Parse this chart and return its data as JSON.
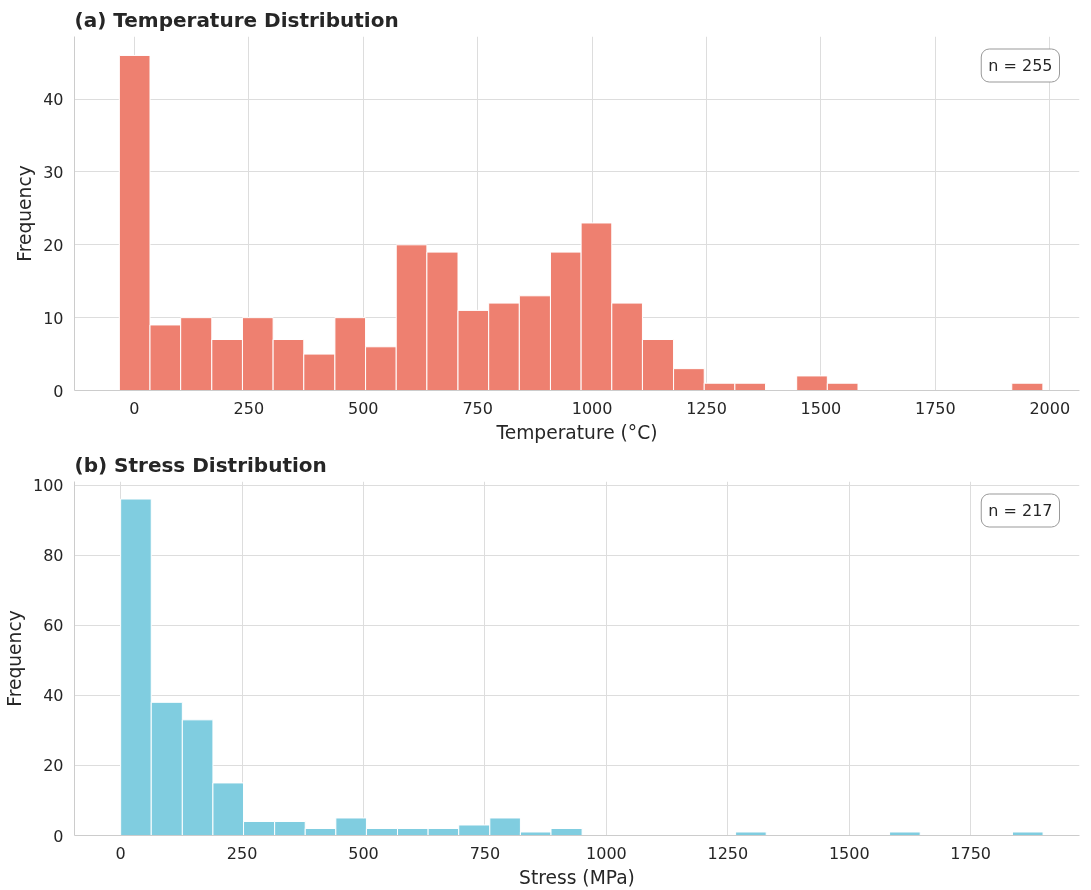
{
  "chart_data": [
    {
      "type": "histogram",
      "title": "(a) Temperature Distribution",
      "xlabel": "Temperature (°C)",
      "ylabel": "Frequency",
      "color": "#ee8070",
      "bins": [
        -33,
        34,
        101,
        169,
        236,
        303,
        370,
        438,
        505,
        572,
        639,
        707,
        774,
        841,
        909,
        976,
        1043,
        1110,
        1178,
        1245,
        1312,
        1379,
        1447,
        1514,
        1581,
        1648,
        1716,
        1783,
        1850,
        1917,
        1985
      ],
      "values": [
        46,
        9,
        10,
        7,
        10,
        7,
        5,
        10,
        6,
        20,
        19,
        11,
        12,
        13,
        19,
        23,
        12,
        7,
        3,
        1,
        1,
        0,
        2,
        1,
        0,
        0,
        0,
        0,
        0,
        1
      ],
      "xlim": [
        -131,
        2065
      ],
      "ylim": [
        0,
        48.6
      ],
      "xticks": [
        0,
        250,
        500,
        750,
        1000,
        1250,
        1500,
        1750,
        2000
      ],
      "yticks": [
        0,
        10,
        20,
        30,
        40
      ],
      "grid": true,
      "annotations": [
        "n = 255"
      ]
    },
    {
      "type": "histogram",
      "title": "(b) Stress Distribution",
      "xlabel": "Stress (MPa)",
      "ylabel": "Frequency",
      "color": "#80cde0",
      "bins": [
        0,
        63,
        127,
        190,
        253,
        317,
        380,
        443,
        506,
        570,
        633,
        696,
        760,
        823,
        886,
        950,
        1013,
        1076,
        1139,
        1203,
        1266,
        1329,
        1393,
        1456,
        1519,
        1583,
        1646,
        1709,
        1772,
        1836,
        1899
      ],
      "values": [
        96,
        38,
        33,
        15,
        4,
        4,
        2,
        5,
        2,
        2,
        2,
        3,
        5,
        1,
        2,
        0,
        0,
        0,
        0,
        0,
        1,
        0,
        0,
        0,
        0,
        1,
        0,
        0,
        0,
        1
      ],
      "xlim": [
        -95,
        1974
      ],
      "ylim": [
        0,
        101
      ],
      "xticks": [
        0,
        250,
        500,
        750,
        1000,
        1250,
        1500,
        1750
      ],
      "yticks": [
        0,
        20,
        40,
        60,
        80,
        100
      ],
      "grid": true,
      "annotations": [
        "n = 217"
      ]
    }
  ]
}
